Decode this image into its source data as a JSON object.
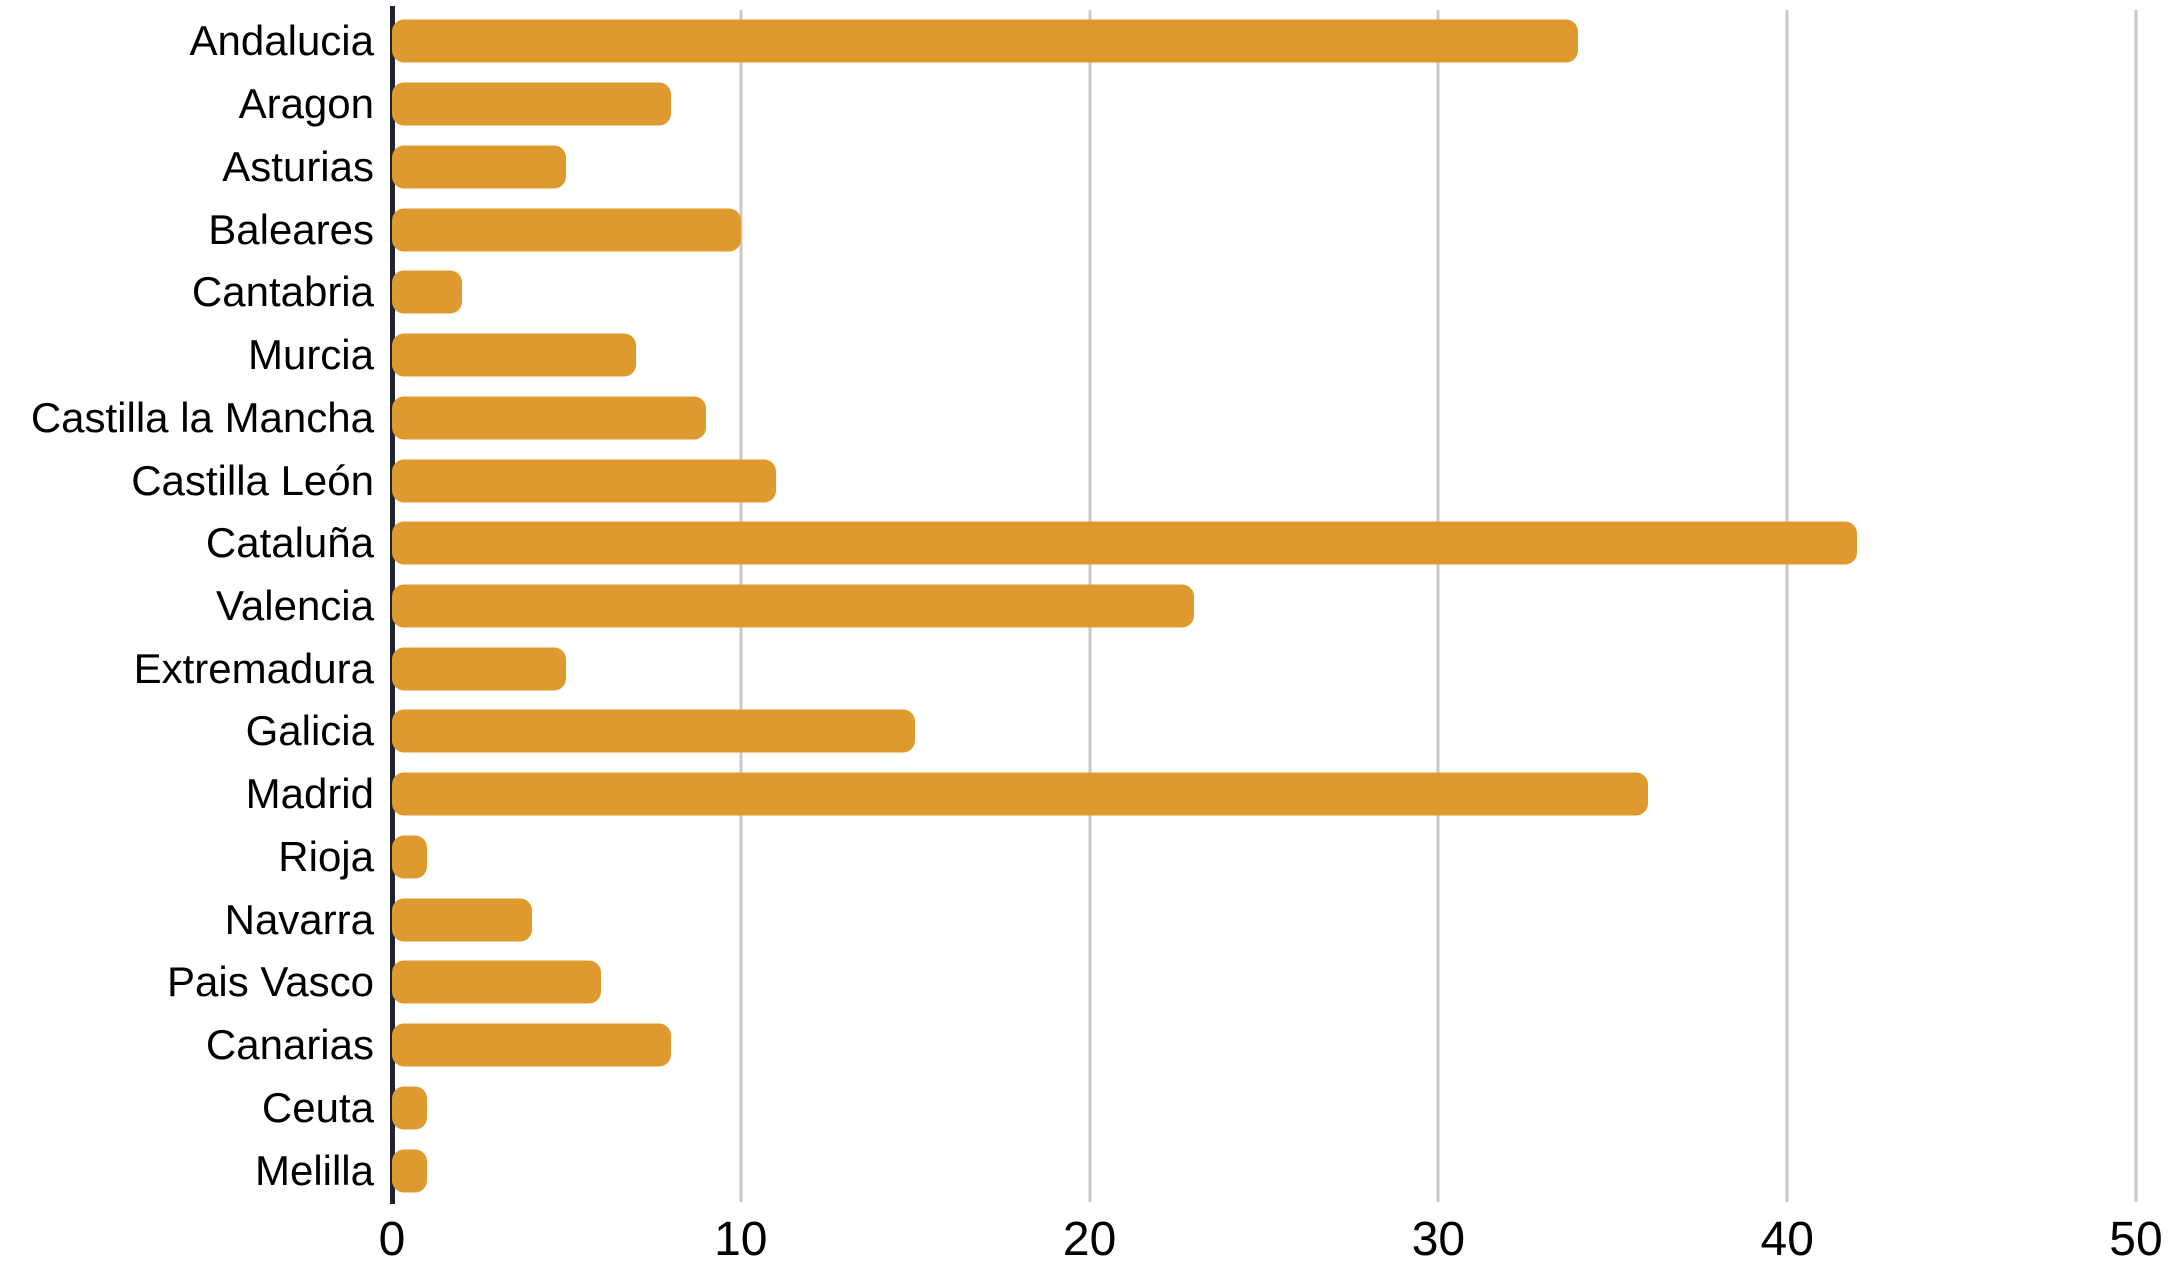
{
  "chart_data": {
    "type": "bar",
    "orientation": "horizontal",
    "title": "",
    "xlabel": "",
    "ylabel": "",
    "categories": [
      "Andalucia",
      "Aragon",
      "Asturias",
      "Baleares",
      "Cantabria",
      "Murcia",
      "Castilla la Mancha",
      "Castilla León",
      "Cataluña",
      "Valencia",
      "Extremadura",
      "Galicia",
      "Madrid",
      "Rioja",
      "Navarra",
      "Pais Vasco",
      "Canarias",
      "Ceuta",
      "Melilla"
    ],
    "values": [
      34,
      8,
      5,
      10,
      2,
      7,
      9,
      11,
      42,
      23,
      5,
      15,
      36,
      1,
      4,
      6,
      8,
      1,
      1
    ],
    "xlim": [
      0,
      50
    ],
    "x_ticks": [
      0,
      10,
      20,
      30,
      40,
      50
    ],
    "x_tick_labels": [
      "0",
      "10",
      "20",
      "30",
      "40",
      "50"
    ],
    "grid": "vertical-gridlines-at-ticks",
    "legend": "none",
    "colors": {
      "bar": "#DE9A2E",
      "axis_line": "#1F2430",
      "gridline": "#C9C9C9",
      "text": "#000000",
      "background": "#FFFFFF"
    }
  }
}
